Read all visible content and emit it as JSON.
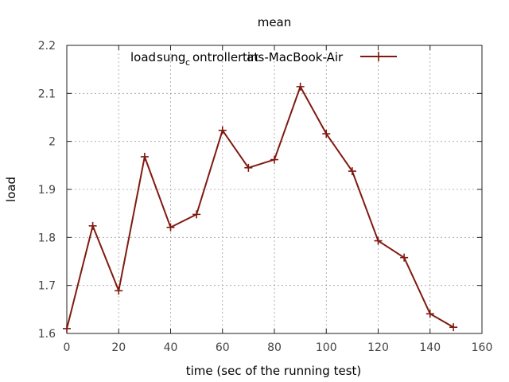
{
  "chart_data": {
    "type": "line",
    "title": "mean",
    "xlabel": "time (sec of the running test)",
    "ylabel": "load",
    "xlim": [
      0,
      160
    ],
    "ylim": [
      1.6,
      2.2
    ],
    "x_ticks": [
      "0",
      "20",
      "40",
      "60",
      "80",
      "100",
      "120",
      "140",
      "160"
    ],
    "y_ticks": [
      "1.6",
      "1.7",
      "1.8",
      "1.9",
      "2",
      "2.1",
      "2.2"
    ],
    "grid": true,
    "legend_position": "top-right",
    "series": [
      {
        "name": "load:sung_controller at tins-MacBook-Air",
        "legend_parts": {
          "a": "load",
          "b": "sung",
          "c": "c",
          "d": "ontroller at",
          "e": "tins-MacBook-Air"
        },
        "color": "#7f1a10",
        "marker": "plus",
        "x": [
          0,
          10,
          20,
          30,
          40,
          50,
          60,
          70,
          80,
          90,
          100,
          110,
          120,
          130,
          140,
          149
        ],
        "y": [
          1.61,
          1.824,
          1.689,
          1.968,
          1.821,
          1.848,
          2.023,
          1.945,
          1.962,
          2.114,
          2.016,
          1.938,
          1.793,
          1.758,
          1.641,
          1.613
        ]
      }
    ]
  }
}
